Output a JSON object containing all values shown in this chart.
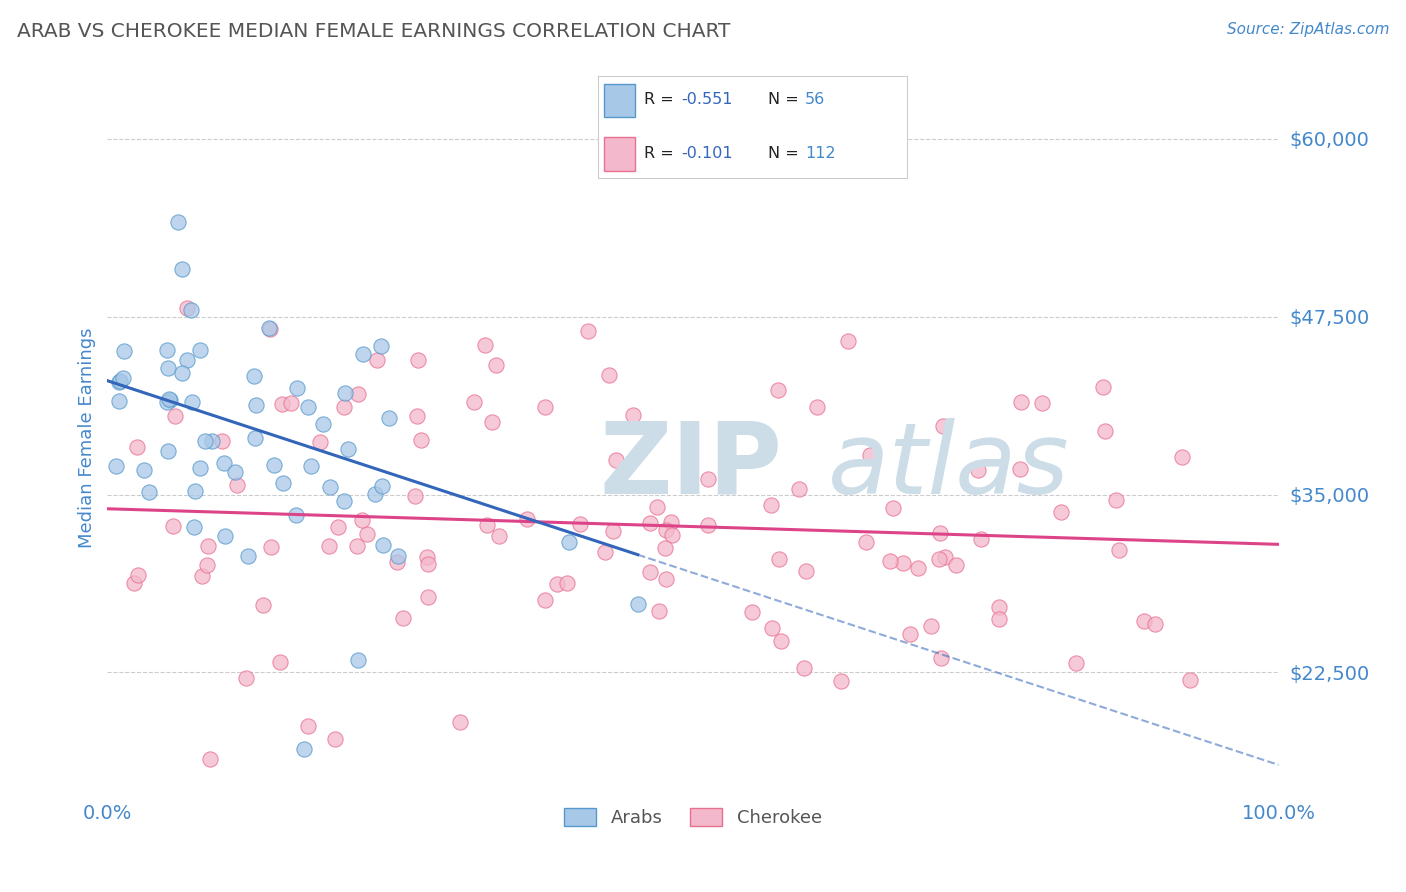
{
  "title": "ARAB VS CHEROKEE MEDIAN FEMALE EARNINGS CORRELATION CHART",
  "source_text": "Source: ZipAtlas.com",
  "ylabel": "Median Female Earnings",
  "xlim": [
    0.0,
    1.0
  ],
  "ylim": [
    14000,
    64000
  ],
  "yticks": [
    22500,
    35000,
    47500,
    60000
  ],
  "ytick_labels": [
    "$22,500",
    "$35,000",
    "$47,500",
    "$60,000"
  ],
  "xticks": [
    0.0,
    1.0
  ],
  "xtick_labels": [
    "0.0%",
    "100.0%"
  ],
  "arab_color_fill": "#a8c8e8",
  "arab_color_edge": "#5599cc",
  "cherokee_color_fill": "#f4b8cc",
  "cherokee_color_edge": "#e87090",
  "arab_line_color": "#3366bb",
  "cherokee_line_color": "#dd4488",
  "watermark_color": "#ccdde8",
  "title_color": "#555555",
  "axis_label_color": "#4488cc",
  "grid_color": "#cccccc",
  "background_color": "#ffffff",
  "legend_box_color": "#f0f0f0",
  "legend_border_color": "#cccccc"
}
